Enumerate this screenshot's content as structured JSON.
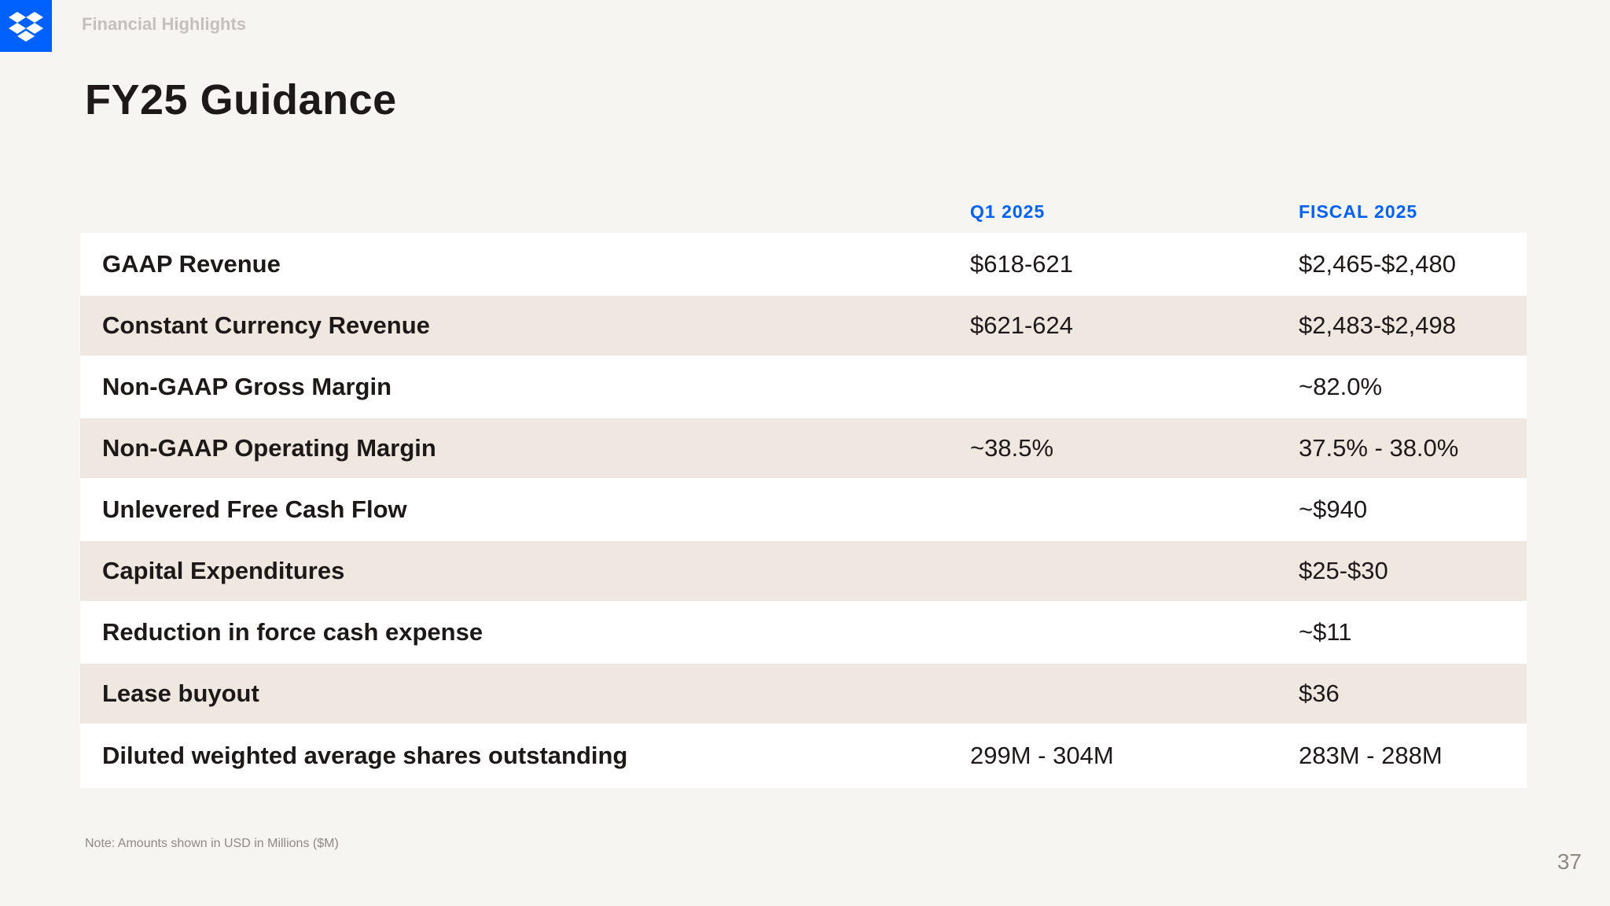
{
  "header": {
    "section": "Financial Highlights",
    "title": "FY25 Guidance",
    "logo_icon": "dropbox-logo-icon",
    "brand_color": "#0061fe"
  },
  "table": {
    "columns": [
      "Q1 2025",
      "FISCAL 2025"
    ],
    "rows": [
      {
        "label": "GAAP Revenue",
        "q1": "$618-621",
        "fy": "$2,465-$2,480"
      },
      {
        "label": "Constant Currency Revenue",
        "q1": "$621-624",
        "fy": "$2,483-$2,498"
      },
      {
        "label": "Non-GAAP Gross Margin",
        "q1": "",
        "fy": "~82.0%"
      },
      {
        "label": "Non-GAAP Operating Margin",
        "q1": "~38.5%",
        "fy": "37.5% - 38.0%"
      },
      {
        "label": "Unlevered Free Cash Flow",
        "q1": "",
        "fy": "~$940"
      },
      {
        "label": "Capital Expenditures",
        "q1": "",
        "fy": "$25-$30"
      },
      {
        "label": "Reduction in force cash expense",
        "q1": "",
        "fy": "~$11"
      },
      {
        "label": "Lease buyout",
        "q1": "",
        "fy": "$36"
      },
      {
        "label": "Diluted weighted average shares outstanding",
        "q1": "299M - 304M",
        "fy": "283M - 288M"
      }
    ]
  },
  "footer": {
    "note": "Note: Amounts shown in USD in Millions ($M)",
    "page_number": "37"
  }
}
